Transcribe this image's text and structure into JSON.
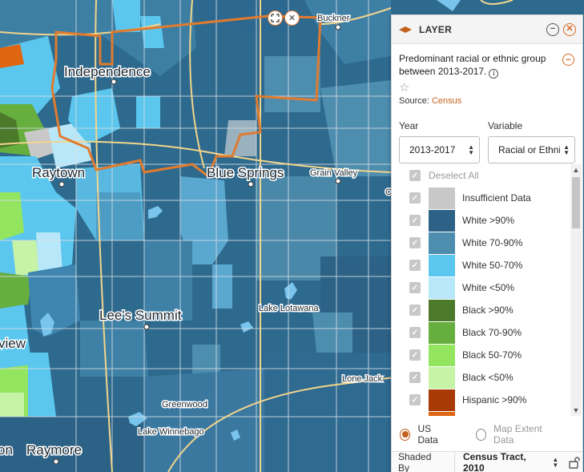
{
  "map": {
    "city_labels": [
      {
        "name": "Independence",
        "size": "lg"
      },
      {
        "name": "Raytown",
        "size": "lg"
      },
      {
        "name": "Blue Springs",
        "size": "lg"
      },
      {
        "name": "Lee's Summit",
        "size": "lg"
      },
      {
        "name": "Raymore",
        "size": "lg"
      },
      {
        "name": "view",
        "size": "lg"
      },
      {
        "name": "on",
        "size": "lg"
      },
      {
        "name": "Buckner",
        "size": "sm"
      },
      {
        "name": "Grain Valley",
        "size": "sm"
      },
      {
        "name": "Lake Lotawana",
        "size": "sm"
      },
      {
        "name": "Lone Jack",
        "size": "sm"
      },
      {
        "name": "Greenwood",
        "size": "sm"
      },
      {
        "name": "Lake Winnebago",
        "size": "sm"
      },
      {
        "name": "O",
        "size": "sm"
      }
    ],
    "controls": {
      "move_icon": "move-arrows-icon",
      "close_icon": "close-icon"
    },
    "boundary_color": "#e07b2f"
  },
  "panel": {
    "title": "LAYER",
    "icon": "layer-icon",
    "description": "Predominant racial or ethnic group between 2013-2017.",
    "source_label": "Source:",
    "source_link": "Census",
    "year": {
      "label": "Year",
      "value": "2013-2017"
    },
    "variable": {
      "label": "Variable",
      "value": "Racial or Ethnic"
    },
    "deselect_all": "Deselect All",
    "legend": [
      {
        "label": "Insufficient Data",
        "color": "#c8c8c8"
      },
      {
        "label": "White >90%",
        "color": "#2c6286"
      },
      {
        "label": "White 70-90%",
        "color": "#4d8dae"
      },
      {
        "label": "White 50-70%",
        "color": "#5bc6ee"
      },
      {
        "label": "White <50%",
        "color": "#b8e7fa"
      },
      {
        "label": "Black >90%",
        "color": "#4b7a2b"
      },
      {
        "label": "Black 70-90%",
        "color": "#66ae3d"
      },
      {
        "label": "Black 50-70%",
        "color": "#93e45f"
      },
      {
        "label": "Black <50%",
        "color": "#c6f3a6"
      },
      {
        "label": "Hispanic >90%",
        "color": "#a83a06"
      },
      {
        "label": "",
        "color": "#e06510"
      }
    ],
    "radio": {
      "us_data": "US Data",
      "map_extent": "Map Extent Data"
    },
    "shaded_by_label": "Shaded By",
    "shaded_by_value": "Census Tract, 2010"
  }
}
